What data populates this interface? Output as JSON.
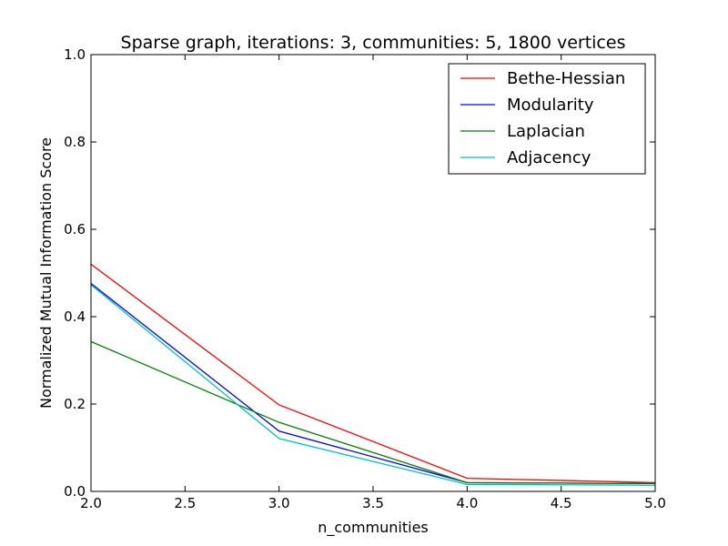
{
  "chart_data": {
    "type": "line",
    "title": "Sparse graph, iterations: 3, communities: 5, 1800 vertices",
    "xlabel": "n_communities",
    "ylabel": "Normalized Mutual Information Score",
    "xlim": [
      2.0,
      5.0
    ],
    "ylim": [
      0.0,
      1.0
    ],
    "x": [
      2.0,
      3.0,
      4.0,
      5.0
    ],
    "x_ticks": [
      "2.0",
      "2.5",
      "3.0",
      "3.5",
      "4.0",
      "4.5",
      "5.0"
    ],
    "y_ticks": [
      "0.0",
      "0.2",
      "0.4",
      "0.6",
      "0.8",
      "1.0"
    ],
    "grid": false,
    "legend_position": "top-right",
    "series": [
      {
        "name": "Bethe-Hessian",
        "color": "#ff0000",
        "values": [
          0.52,
          0.198,
          0.03,
          0.02
        ]
      },
      {
        "name": "Modularity",
        "color": "#0000ff",
        "values": [
          0.476,
          0.138,
          0.02,
          0.018
        ]
      },
      {
        "name": "Laplacian",
        "color": "#008000",
        "values": [
          0.343,
          0.158,
          0.02,
          0.018
        ]
      },
      {
        "name": "Adjacency",
        "color": "#00bfbf",
        "values": [
          0.473,
          0.121,
          0.016,
          0.014
        ]
      }
    ]
  }
}
